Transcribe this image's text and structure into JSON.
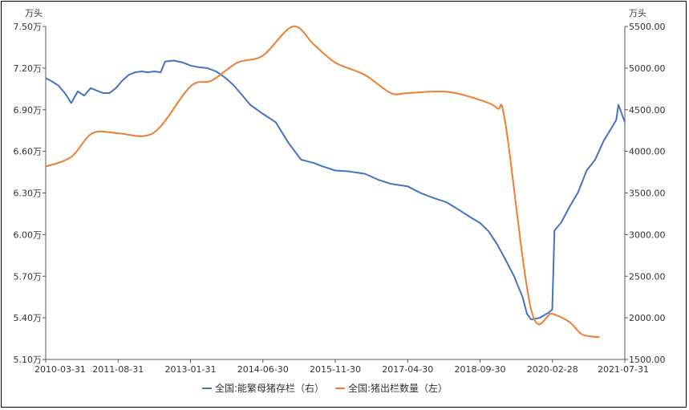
{
  "chart_data": {
    "type": "line",
    "left_axis_unit": "万头",
    "right_axis_unit": "万头",
    "left_ylim": [
      5.1,
      7.5
    ],
    "right_ylim": [
      1500,
      5500
    ],
    "left_ticks": [
      "7.50万",
      "7.20万",
      "6.90万",
      "6.60万",
      "6.30万",
      "6.00万",
      "5.70万",
      "5.40万",
      "5.10万"
    ],
    "right_ticks": [
      "5500.00",
      "5000.00",
      "4500.00",
      "4000.00",
      "3500.00",
      "3000.00",
      "2500.00",
      "2000.00",
      "1500.00"
    ],
    "x_ticks": [
      "2010-03-31",
      "2011-08-31",
      "2013-01-31",
      "2014-06-30",
      "2015-11-30",
      "2017-04-30",
      "2018-09-30",
      "2020-02-28",
      "2021-07-31"
    ],
    "x_range": [
      "2010-03-31",
      "2021-07-31"
    ],
    "series": [
      {
        "name": "全国:能繁母猪存栏（右）",
        "axis": "right",
        "color": "#4472c4",
        "points": [
          [
            "2010-03-31",
            4880
          ],
          [
            "2010-05-15",
            4840
          ],
          [
            "2010-06-30",
            4790
          ],
          [
            "2010-08-15",
            4700
          ],
          [
            "2010-09-30",
            4580
          ],
          [
            "2010-11-15",
            4720
          ],
          [
            "2010-12-31",
            4670
          ],
          [
            "2011-02-15",
            4760
          ],
          [
            "2011-03-31",
            4730
          ],
          [
            "2011-05-15",
            4700
          ],
          [
            "2011-06-30",
            4700
          ],
          [
            "2011-08-15",
            4760
          ],
          [
            "2011-09-30",
            4850
          ],
          [
            "2011-11-15",
            4920
          ],
          [
            "2011-12-31",
            4950
          ],
          [
            "2012-02-15",
            4960
          ],
          [
            "2012-03-31",
            4950
          ],
          [
            "2012-05-15",
            4960
          ],
          [
            "2012-06-30",
            4950
          ],
          [
            "2012-07-31",
            5080
          ],
          [
            "2012-09-30",
            5090
          ],
          [
            "2012-11-30",
            5070
          ],
          [
            "2013-01-31",
            5030
          ],
          [
            "2013-03-31",
            5010
          ],
          [
            "2013-05-31",
            5000
          ],
          [
            "2013-07-31",
            4960
          ],
          [
            "2013-09-30",
            4890
          ],
          [
            "2013-11-30",
            4800
          ],
          [
            "2014-01-31",
            4680
          ],
          [
            "2014-03-31",
            4560
          ],
          [
            "2014-06-30",
            4450
          ],
          [
            "2014-09-30",
            4350
          ],
          [
            "2014-12-31",
            4100
          ],
          [
            "2015-03-31",
            3900
          ],
          [
            "2015-06-30",
            3860
          ],
          [
            "2015-08-31",
            3820
          ],
          [
            "2015-11-30",
            3770
          ],
          [
            "2016-02-29",
            3760
          ],
          [
            "2016-06-30",
            3730
          ],
          [
            "2016-09-30",
            3660
          ],
          [
            "2016-12-31",
            3610
          ],
          [
            "2017-04-30",
            3580
          ],
          [
            "2017-07-31",
            3500
          ],
          [
            "2017-10-31",
            3440
          ],
          [
            "2018-01-31",
            3390
          ],
          [
            "2018-04-30",
            3300
          ],
          [
            "2018-07-31",
            3200
          ],
          [
            "2018-09-30",
            3140
          ],
          [
            "2018-11-30",
            3040
          ],
          [
            "2019-01-31",
            2880
          ],
          [
            "2019-03-31",
            2700
          ],
          [
            "2019-05-31",
            2500
          ],
          [
            "2019-07-31",
            2250
          ],
          [
            "2019-08-31",
            2050
          ],
          [
            "2019-09-30",
            1980
          ],
          [
            "2019-11-30",
            2000
          ],
          [
            "2020-01-31",
            2060
          ],
          [
            "2020-02-28",
            2100
          ],
          [
            "2020-03-15",
            3050
          ],
          [
            "2020-04-30",
            3140
          ],
          [
            "2020-06-30",
            3330
          ],
          [
            "2020-08-31",
            3510
          ],
          [
            "2020-10-31",
            3770
          ],
          [
            "2020-12-31",
            3900
          ],
          [
            "2021-02-28",
            4120
          ],
          [
            "2021-04-30",
            4290
          ],
          [
            "2021-05-31",
            4380
          ],
          [
            "2021-06-15",
            4560
          ],
          [
            "2021-07-31",
            4350
          ]
        ]
      },
      {
        "name": "全国:猪出栏数量（左）",
        "axis": "left",
        "color": "#ed7d31",
        "points": [
          [
            "2010-03-31",
            6.49
          ],
          [
            "2010-09-30",
            6.56
          ],
          [
            "2011-02-28",
            6.73
          ],
          [
            "2011-08-31",
            6.73
          ],
          [
            "2012-02-29",
            6.71
          ],
          [
            "2012-06-30",
            6.78
          ],
          [
            "2013-01-31",
            7.07
          ],
          [
            "2013-06-30",
            7.11
          ],
          [
            "2013-12-31",
            7.24
          ],
          [
            "2014-06-30",
            7.29
          ],
          [
            "2015-01-31",
            7.5
          ],
          [
            "2015-06-30",
            7.37
          ],
          [
            "2015-11-30",
            7.24
          ],
          [
            "2016-06-30",
            7.15
          ],
          [
            "2016-12-31",
            7.02
          ],
          [
            "2017-04-30",
            7.02
          ],
          [
            "2018-01-31",
            7.03
          ],
          [
            "2018-09-30",
            6.97
          ],
          [
            "2019-01-31",
            6.91
          ],
          [
            "2019-03-31",
            6.8
          ],
          [
            "2019-09-30",
            5.46
          ],
          [
            "2020-02-28",
            5.43
          ],
          [
            "2020-06-30",
            5.37
          ],
          [
            "2020-09-30",
            5.28
          ],
          [
            "2021-01-31",
            5.26
          ]
        ]
      }
    ]
  }
}
